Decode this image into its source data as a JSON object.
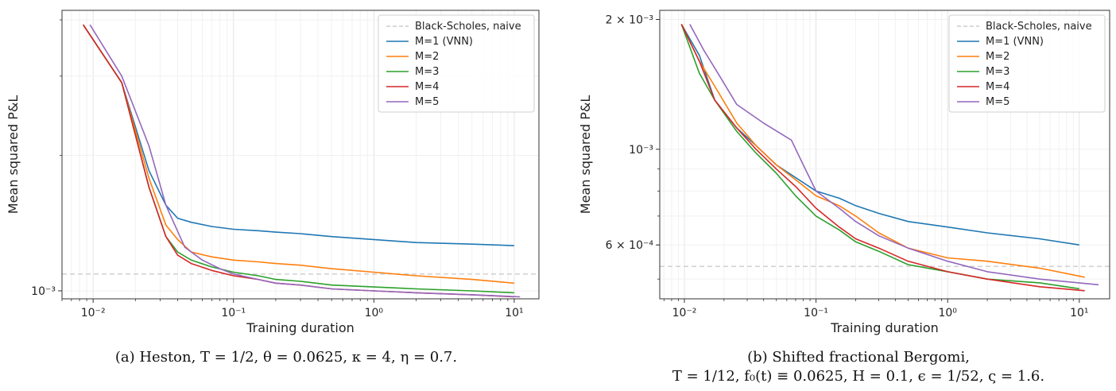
{
  "chart_data": [
    {
      "type": "line",
      "panel": "a",
      "xscale": "log",
      "yscale": "log",
      "xlabel": "Training duration",
      "ylabel": "Mean squared P&L",
      "xlim": [
        0.006,
        15
      ],
      "ylim": [
        0.00096,
        0.0042
      ],
      "xticks": [
        {
          "value": 0.01,
          "label": "10⁻²"
        },
        {
          "value": 0.1,
          "label": "10⁻¹"
        },
        {
          "value": 1,
          "label": "10⁰"
        },
        {
          "value": 10,
          "label": "10¹"
        }
      ],
      "yticks": [
        {
          "value": 0.001,
          "label": "10⁻³"
        }
      ],
      "grid": true,
      "legend_position": "top-right",
      "baseline": {
        "name": "Black-Scholes, naive",
        "y": 0.00109,
        "color": "#cccccc",
        "dash": true
      },
      "series": [
        {
          "name": "M=1 (VNN)",
          "color": "#1f77b4",
          "x": [
            0.0085,
            0.016,
            0.025,
            0.033,
            0.04,
            0.05,
            0.07,
            0.1,
            0.15,
            0.2,
            0.3,
            0.5,
            1,
            2,
            5,
            10
          ],
          "y": [
            0.0039,
            0.0029,
            0.00185,
            0.00155,
            0.00145,
            0.00142,
            0.00139,
            0.00137,
            0.00136,
            0.00135,
            0.00134,
            0.00132,
            0.0013,
            0.00128,
            0.00127,
            0.00126
          ]
        },
        {
          "name": "M=2",
          "color": "#ff7f0e",
          "x": [
            0.0085,
            0.016,
            0.025,
            0.033,
            0.04,
            0.05,
            0.07,
            0.1,
            0.15,
            0.2,
            0.3,
            0.5,
            1,
            2,
            5,
            10
          ],
          "y": [
            0.0039,
            0.0029,
            0.00178,
            0.0014,
            0.0013,
            0.00122,
            0.00119,
            0.00117,
            0.00116,
            0.00115,
            0.00114,
            0.00112,
            0.0011,
            0.00108,
            0.00106,
            0.00104
          ]
        },
        {
          "name": "M=3",
          "color": "#2ca02c",
          "x": [
            0.0085,
            0.016,
            0.025,
            0.033,
            0.04,
            0.05,
            0.07,
            0.1,
            0.15,
            0.2,
            0.3,
            0.5,
            1,
            2,
            5,
            10
          ],
          "y": [
            0.0039,
            0.0029,
            0.0017,
            0.00132,
            0.00122,
            0.00117,
            0.00113,
            0.0011,
            0.00108,
            0.00106,
            0.00105,
            0.00103,
            0.00102,
            0.00101,
            0.001,
            0.00099
          ]
        },
        {
          "name": "M=4",
          "color": "#d62728",
          "x": [
            0.0085,
            0.016,
            0.025,
            0.033,
            0.04,
            0.05,
            0.07,
            0.1,
            0.15,
            0.2,
            0.3,
            0.5,
            1,
            2,
            5,
            10
          ],
          "y": [
            0.0039,
            0.0029,
            0.0017,
            0.00132,
            0.0012,
            0.00115,
            0.00111,
            0.00108,
            0.00106,
            0.00104,
            0.00103,
            0.00101,
            0.001,
            0.00099,
            0.00098,
            0.00097
          ]
        },
        {
          "name": "M=5",
          "color": "#9467bd",
          "x": [
            0.0095,
            0.016,
            0.025,
            0.033,
            0.045,
            0.06,
            0.08,
            0.1,
            0.15,
            0.2,
            0.3,
            0.5,
            1,
            2,
            5,
            11
          ],
          "y": [
            0.0039,
            0.003,
            0.0021,
            0.00155,
            0.00125,
            0.00117,
            0.00112,
            0.00109,
            0.00106,
            0.00104,
            0.00103,
            0.00101,
            0.001,
            0.00099,
            0.00098,
            0.00097
          ]
        }
      ]
    },
    {
      "type": "line",
      "panel": "b",
      "xscale": "log",
      "yscale": "log",
      "xlabel": "Training duration",
      "ylabel": "Mean squared P&L",
      "xlim": [
        0.0065,
        17
      ],
      "ylim": [
        0.00045,
        0.0021
      ],
      "xticks": [
        {
          "value": 0.01,
          "label": "10⁻²"
        },
        {
          "value": 0.1,
          "label": "10⁻¹"
        },
        {
          "value": 1,
          "label": "10⁰"
        },
        {
          "value": 10,
          "label": "10¹"
        }
      ],
      "yticks": [
        {
          "value": 0.0006,
          "label": "6 × 10⁻⁴"
        },
        {
          "value": 0.001,
          "label": "10⁻³"
        },
        {
          "value": 0.002,
          "label": "2 × 10⁻³"
        }
      ],
      "grid": true,
      "legend_position": "top-right",
      "baseline": {
        "name": "Black-Scholes, naive",
        "y": 0.000535,
        "color": "#cccccc",
        "dash": true
      },
      "series": [
        {
          "name": "M=1 (VNN)",
          "color": "#1f77b4",
          "x": [
            0.0095,
            0.013,
            0.017,
            0.025,
            0.035,
            0.05,
            0.07,
            0.1,
            0.15,
            0.2,
            0.3,
            0.5,
            1,
            2,
            5,
            10
          ],
          "y": [
            0.00195,
            0.00165,
            0.0013,
            0.00112,
            0.00102,
            0.00092,
            0.00086,
            0.0008,
            0.00077,
            0.00074,
            0.00071,
            0.00068,
            0.00066,
            0.00064,
            0.00062,
            0.0006
          ]
        },
        {
          "name": "M=2",
          "color": "#ff7f0e",
          "x": [
            0.0095,
            0.013,
            0.017,
            0.025,
            0.035,
            0.05,
            0.07,
            0.1,
            0.15,
            0.2,
            0.3,
            0.5,
            1,
            2,
            5,
            11
          ],
          "y": [
            0.00195,
            0.0016,
            0.0014,
            0.00115,
            0.00102,
            0.00092,
            0.00085,
            0.00078,
            0.00074,
            0.0007,
            0.00064,
            0.00059,
            0.00056,
            0.00055,
            0.00053,
            0.000505
          ]
        },
        {
          "name": "M=3",
          "color": "#2ca02c",
          "x": [
            0.0095,
            0.013,
            0.017,
            0.025,
            0.035,
            0.05,
            0.07,
            0.1,
            0.15,
            0.2,
            0.3,
            0.5,
            1,
            2,
            5,
            10
          ],
          "y": [
            0.00195,
            0.0015,
            0.0013,
            0.0011,
            0.00098,
            0.00088,
            0.00078,
            0.0007,
            0.00065,
            0.00061,
            0.00058,
            0.00054,
            0.00052,
            0.0005,
            0.00049,
            0.000475
          ]
        },
        {
          "name": "M=4",
          "color": "#d62728",
          "x": [
            0.0095,
            0.013,
            0.017,
            0.025,
            0.035,
            0.05,
            0.07,
            0.1,
            0.15,
            0.2,
            0.3,
            0.5,
            1,
            2,
            5,
            11
          ],
          "y": [
            0.00195,
            0.0016,
            0.0013,
            0.00112,
            0.001,
            0.0009,
            0.00082,
            0.00073,
            0.00066,
            0.00062,
            0.00059,
            0.00055,
            0.00052,
            0.0005,
            0.00048,
            0.00047
          ]
        },
        {
          "name": "M=5",
          "color": "#9467bd",
          "x": [
            0.011,
            0.014,
            0.018,
            0.025,
            0.04,
            0.065,
            0.08,
            0.1,
            0.15,
            0.2,
            0.3,
            0.5,
            1,
            2,
            5,
            14
          ],
          "y": [
            0.00195,
            0.0017,
            0.0015,
            0.00127,
            0.00115,
            0.00105,
            0.00092,
            0.0008,
            0.00073,
            0.00068,
            0.00063,
            0.00059,
            0.00055,
            0.00052,
            0.0005,
            0.000485
          ]
        }
      ]
    }
  ],
  "captions": {
    "a": "(a) Heston, T = 1/2, θ = 0.0625, κ = 4, η = 0.7.",
    "b_line1": "(b) Shifted fractional Bergomi,",
    "b_line2": "T = 1/12, f₀(t) ≡ 0.0625, H = 0.1, ϵ = 1/52, ς = 1.6."
  }
}
